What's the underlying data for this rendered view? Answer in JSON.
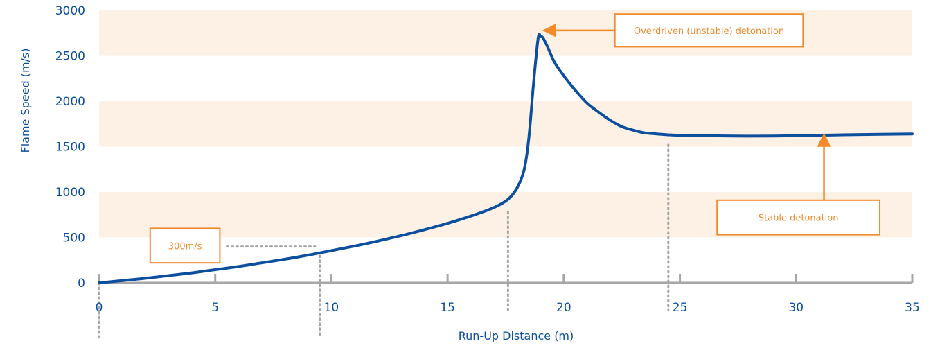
{
  "chart_data": {
    "type": "line",
    "title": "",
    "xlabel": "Run-Up Distance (m)",
    "ylabel": "Flame Speed (m/s)",
    "xlim": [
      0,
      35
    ],
    "ylim": [
      0,
      3000
    ],
    "xticks": [
      0,
      5,
      10,
      15,
      20,
      25,
      30,
      35
    ],
    "yticks": [
      0,
      500,
      1000,
      1500,
      2000,
      2500,
      3000
    ],
    "band_ranges": [
      [
        500,
        1000
      ],
      [
        1500,
        2000
      ],
      [
        2500,
        3000
      ]
    ],
    "colors": {
      "line": "#0c4f9e",
      "band": "#fdf0e4",
      "annotation": "#f08a2b",
      "axis": "#a6a6a6",
      "text": "#0c4f9e"
    },
    "series": [
      {
        "x": [
          0,
          1,
          2,
          3,
          4,
          5,
          6,
          7,
          8,
          9,
          10,
          11,
          12,
          13,
          14,
          15,
          16,
          17,
          17.6,
          18,
          18.3,
          18.5,
          18.7,
          18.9,
          19.0,
          19.1,
          19.3,
          19.6,
          20,
          20.5,
          21,
          21.5,
          22,
          22.5,
          23,
          23.5,
          24,
          24.5,
          25,
          26,
          28,
          30,
          32,
          35
        ],
        "y": [
          0,
          25,
          50,
          80,
          110,
          145,
          180,
          220,
          260,
          305,
          355,
          405,
          460,
          520,
          585,
          655,
          735,
          830,
          920,
          1050,
          1250,
          1600,
          2200,
          2700,
          2710,
          2700,
          2600,
          2430,
          2280,
          2120,
          1980,
          1880,
          1790,
          1720,
          1680,
          1650,
          1640,
          1630,
          1625,
          1620,
          1615,
          1620,
          1630,
          1640
        ]
      }
    ],
    "dotted_lines": [
      {
        "x1": 0,
        "y1": 0,
        "x2": 0,
        "y2": -600
      },
      {
        "x1": 9.5,
        "y1": 300,
        "x2": 9.5,
        "y2": -600
      },
      {
        "x1": 5.5,
        "y1": 400,
        "x2": 9.3,
        "y2": 400
      },
      {
        "x1": 17.6,
        "y1": 780,
        "x2": 17.6,
        "y2": -300
      },
      {
        "x1": 24.5,
        "y1": 1520,
        "x2": 24.5,
        "y2": -300
      }
    ],
    "annotations": [
      {
        "text": "300m/s",
        "box_x": [
          2.2,
          5.2
        ],
        "box_y": [
          220,
          600
        ]
      },
      {
        "text": "Overdriven (unstable) detonation",
        "box_x": [
          22.2,
          30.3
        ],
        "box_y": [
          2600,
          2960
        ],
        "arrow_from": [
          22.2,
          2780
        ],
        "arrow_to": [
          19.2,
          2780
        ]
      },
      {
        "text": "Stable detonation",
        "box_x": [
          26.6,
          33.6
        ],
        "box_y": [
          530,
          910
        ],
        "arrow_from": [
          31.2,
          910
        ],
        "arrow_to": [
          31.2,
          1620
        ]
      }
    ]
  }
}
